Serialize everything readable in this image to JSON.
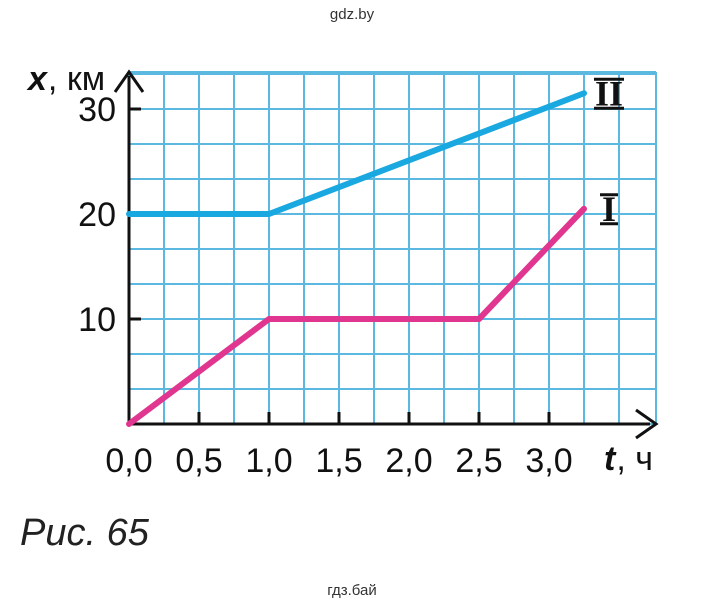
{
  "watermark_top": "gdz.by",
  "watermark_bottom": "гдз.бай",
  "caption": "Рис. 65",
  "colors": {
    "grid": "#5bb8e0",
    "axis": "#111111",
    "series_I": "#e0368f",
    "series_II": "#1aa8e0"
  },
  "chart_data": {
    "type": "line",
    "grid": true,
    "xlabel": {
      "var": "t",
      "unit": ", ч"
    },
    "ylabel": {
      "var": "x",
      "unit": ", км"
    },
    "xlim": [
      0,
      3.7
    ],
    "ylim": [
      0,
      33
    ],
    "x_ticks": [
      "0,0",
      "0,5",
      "1,0",
      "1,5",
      "2,0",
      "2,5",
      "3,0"
    ],
    "x_tick_values": [
      0,
      0.5,
      1.0,
      1.5,
      2.0,
      2.5,
      3.0
    ],
    "y_ticks": [
      "10",
      "20",
      "30"
    ],
    "y_tick_values": [
      10,
      20,
      30
    ],
    "series": [
      {
        "name": "I",
        "x": [
          0,
          1.0,
          2.5,
          3.25
        ],
        "y": [
          0,
          10,
          10,
          20.5
        ]
      },
      {
        "name": "II",
        "x": [
          0,
          1.0,
          3.25
        ],
        "y": [
          20,
          20,
          31.5
        ]
      }
    ]
  }
}
